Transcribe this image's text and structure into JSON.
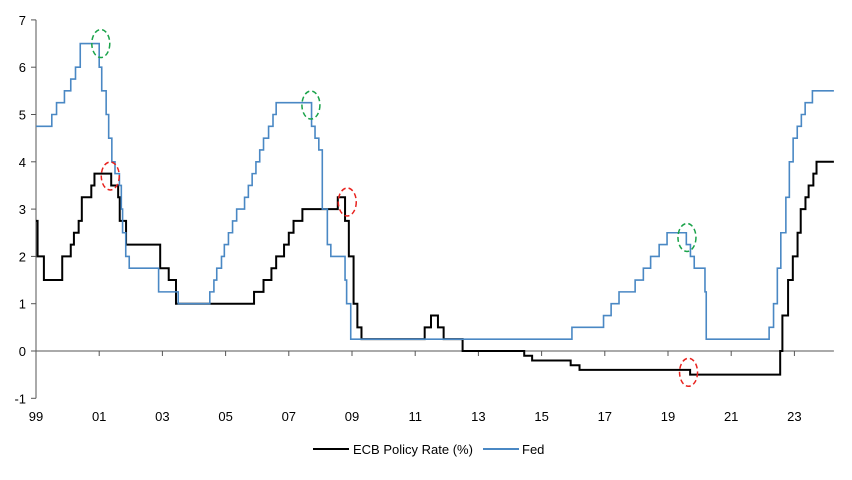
{
  "chart_data": {
    "type": "line",
    "step": true,
    "title": "",
    "xlabel": "",
    "ylabel": "",
    "xlim": [
      1999,
      2024.25
    ],
    "ylim": [
      -1,
      7
    ],
    "x_ticks": [
      1999,
      2001,
      2003,
      2005,
      2007,
      2009,
      2011,
      2013,
      2015,
      2017,
      2019,
      2021,
      2023
    ],
    "x_tick_labels": [
      "99",
      "01",
      "03",
      "05",
      "07",
      "09",
      "11",
      "13",
      "15",
      "17",
      "19",
      "21",
      "23"
    ],
    "y_ticks": [
      -1,
      0,
      1,
      2,
      3,
      4,
      5,
      6,
      7
    ],
    "y_tick_labels": [
      "-1",
      "0",
      "1",
      "2",
      "3",
      "4",
      "5",
      "6",
      "7"
    ],
    "grid": false,
    "legend_position": "bottom",
    "series": [
      {
        "name": "ECB Policy Rate (%)",
        "color": "#000000",
        "points": [
          [
            1999.0,
            2.75
          ],
          [
            1999.05,
            2.0
          ],
          [
            1999.25,
            1.5
          ],
          [
            1999.83,
            2.0
          ],
          [
            2000.1,
            2.25
          ],
          [
            2000.2,
            2.5
          ],
          [
            2000.35,
            2.75
          ],
          [
            2000.45,
            3.25
          ],
          [
            2000.75,
            3.5
          ],
          [
            2000.85,
            3.75
          ],
          [
            2001.38,
            3.5
          ],
          [
            2001.6,
            3.25
          ],
          [
            2001.65,
            2.75
          ],
          [
            2001.85,
            2.25
          ],
          [
            2002.93,
            1.75
          ],
          [
            2003.2,
            1.5
          ],
          [
            2003.43,
            1.0
          ],
          [
            2005.9,
            1.25
          ],
          [
            2006.2,
            1.5
          ],
          [
            2006.45,
            1.75
          ],
          [
            2006.6,
            2.0
          ],
          [
            2006.85,
            2.25
          ],
          [
            2007.0,
            2.5
          ],
          [
            2007.15,
            2.75
          ],
          [
            2007.43,
            3.0
          ],
          [
            2008.55,
            3.25
          ],
          [
            2008.78,
            2.75
          ],
          [
            2008.9,
            2.0
          ],
          [
            2009.05,
            1.0
          ],
          [
            2009.17,
            0.5
          ],
          [
            2009.3,
            0.25
          ],
          [
            2011.3,
            0.5
          ],
          [
            2011.5,
            0.75
          ],
          [
            2011.72,
            0.5
          ],
          [
            2011.9,
            0.25
          ],
          [
            2012.5,
            0.0
          ],
          [
            2014.45,
            -0.1
          ],
          [
            2014.7,
            -0.2
          ],
          [
            2015.92,
            -0.3
          ],
          [
            2016.2,
            -0.4
          ],
          [
            2019.7,
            -0.5
          ],
          [
            2022.55,
            0.0
          ],
          [
            2022.62,
            0.75
          ],
          [
            2022.8,
            1.5
          ],
          [
            2022.95,
            2.0
          ],
          [
            2023.1,
            2.5
          ],
          [
            2023.2,
            3.0
          ],
          [
            2023.35,
            3.25
          ],
          [
            2023.45,
            3.5
          ],
          [
            2023.6,
            3.75
          ],
          [
            2023.7,
            4.0
          ],
          [
            2024.25,
            4.0
          ]
        ]
      },
      {
        "name": "Fed",
        "color": "#4a88c4",
        "points": [
          [
            1999.0,
            4.75
          ],
          [
            1999.5,
            5.0
          ],
          [
            1999.65,
            5.25
          ],
          [
            1999.9,
            5.5
          ],
          [
            2000.1,
            5.75
          ],
          [
            2000.25,
            6.0
          ],
          [
            2000.4,
            6.5
          ],
          [
            2001.0,
            6.0
          ],
          [
            2001.08,
            5.5
          ],
          [
            2001.22,
            5.0
          ],
          [
            2001.3,
            4.5
          ],
          [
            2001.4,
            4.0
          ],
          [
            2001.5,
            3.75
          ],
          [
            2001.64,
            3.5
          ],
          [
            2001.7,
            3.0
          ],
          [
            2001.74,
            2.5
          ],
          [
            2001.84,
            2.0
          ],
          [
            2001.95,
            1.75
          ],
          [
            2002.88,
            1.25
          ],
          [
            2003.5,
            1.0
          ],
          [
            2004.5,
            1.25
          ],
          [
            2004.63,
            1.5
          ],
          [
            2004.72,
            1.75
          ],
          [
            2004.87,
            2.0
          ],
          [
            2004.96,
            2.25
          ],
          [
            2005.09,
            2.5
          ],
          [
            2005.22,
            2.75
          ],
          [
            2005.35,
            3.0
          ],
          [
            2005.6,
            3.25
          ],
          [
            2005.72,
            3.5
          ],
          [
            2005.84,
            3.75
          ],
          [
            2005.96,
            4.0
          ],
          [
            2006.08,
            4.25
          ],
          [
            2006.2,
            4.5
          ],
          [
            2006.36,
            4.75
          ],
          [
            2006.5,
            5.0
          ],
          [
            2006.6,
            5.25
          ],
          [
            2007.72,
            4.75
          ],
          [
            2007.83,
            4.5
          ],
          [
            2007.95,
            4.25
          ],
          [
            2008.06,
            3.0
          ],
          [
            2008.22,
            2.25
          ],
          [
            2008.33,
            2.0
          ],
          [
            2008.78,
            1.5
          ],
          [
            2008.83,
            1.0
          ],
          [
            2008.96,
            0.25
          ],
          [
            2015.96,
            0.5
          ],
          [
            2016.96,
            0.75
          ],
          [
            2017.2,
            1.0
          ],
          [
            2017.45,
            1.25
          ],
          [
            2017.96,
            1.5
          ],
          [
            2018.22,
            1.75
          ],
          [
            2018.45,
            2.0
          ],
          [
            2018.72,
            2.25
          ],
          [
            2018.97,
            2.5
          ],
          [
            2019.58,
            2.25
          ],
          [
            2019.71,
            2.0
          ],
          [
            2019.83,
            1.75
          ],
          [
            2020.17,
            1.25
          ],
          [
            2020.21,
            0.25
          ],
          [
            2022.2,
            0.5
          ],
          [
            2022.34,
            1.0
          ],
          [
            2022.46,
            1.75
          ],
          [
            2022.57,
            2.5
          ],
          [
            2022.73,
            3.25
          ],
          [
            2022.84,
            4.0
          ],
          [
            2022.96,
            4.5
          ],
          [
            2023.09,
            4.75
          ],
          [
            2023.22,
            5.0
          ],
          [
            2023.34,
            5.25
          ],
          [
            2023.57,
            5.5
          ],
          [
            2024.25,
            5.5
          ]
        ]
      }
    ],
    "annotations": [
      {
        "shape": "dashed-ellipse",
        "color": "#1aa34a",
        "x": 2001.05,
        "y": 6.5
      },
      {
        "shape": "dashed-ellipse",
        "color": "#1aa34a",
        "x": 2007.7,
        "y": 5.2
      },
      {
        "shape": "dashed-ellipse",
        "color": "#1aa34a",
        "x": 2019.6,
        "y": 2.4
      },
      {
        "shape": "dashed-ellipse",
        "color": "#e8231f",
        "x": 2001.35,
        "y": 3.7
      },
      {
        "shape": "dashed-ellipse",
        "color": "#e8231f",
        "x": 2008.85,
        "y": 3.15
      },
      {
        "shape": "dashed-ellipse",
        "color": "#e8231f",
        "x": 2019.65,
        "y": -0.45
      }
    ]
  }
}
